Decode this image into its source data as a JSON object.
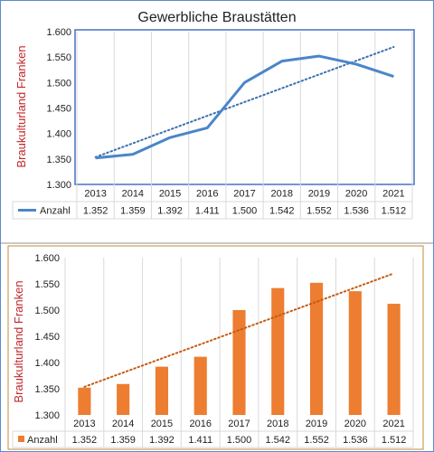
{
  "chart_data": [
    {
      "type": "line",
      "title": "Gewerbliche Braustätten",
      "ylabel": "Braukulturland Franken",
      "ylim": [
        1300,
        1600
      ],
      "yticks": [
        "1.300",
        "1.350",
        "1.400",
        "1.450",
        "1.500",
        "1.550",
        "1.600"
      ],
      "categories": [
        "2013",
        "2014",
        "2015",
        "2016",
        "2017",
        "2018",
        "2019",
        "2020",
        "2021"
      ],
      "series": [
        {
          "name": "Anzahl",
          "values": [
            1352,
            1359,
            1392,
            1411,
            1500,
            1542,
            1552,
            1536,
            1512
          ],
          "labels": [
            "1.352",
            "1.359",
            "1.392",
            "1.411",
            "1.500",
            "1.542",
            "1.552",
            "1.536",
            "1.512"
          ],
          "color": "#4a86c8"
        }
      ],
      "trendline": {
        "type": "linear",
        "style": "dotted",
        "color": "#3a6fb0"
      },
      "grid": "vertical",
      "data_table": true
    },
    {
      "type": "bar",
      "ylabel": "Braukulturland Franken",
      "ylim": [
        1300,
        1600
      ],
      "yticks": [
        "1.300",
        "1.350",
        "1.400",
        "1.450",
        "1.500",
        "1.550",
        "1.600"
      ],
      "categories": [
        "2013",
        "2014",
        "2015",
        "2016",
        "2017",
        "2018",
        "2019",
        "2020",
        "2021"
      ],
      "series": [
        {
          "name": "Anzahl",
          "values": [
            1352,
            1359,
            1392,
            1411,
            1500,
            1542,
            1552,
            1536,
            1512
          ],
          "labels": [
            "1.352",
            "1.359",
            "1.392",
            "1.411",
            "1.500",
            "1.542",
            "1.552",
            "1.536",
            "1.512"
          ],
          "color": "#ed7d31"
        }
      ],
      "trendline": {
        "type": "linear",
        "style": "dotted",
        "color": "#c55a11"
      },
      "grid": "vertical",
      "data_table": true
    }
  ]
}
